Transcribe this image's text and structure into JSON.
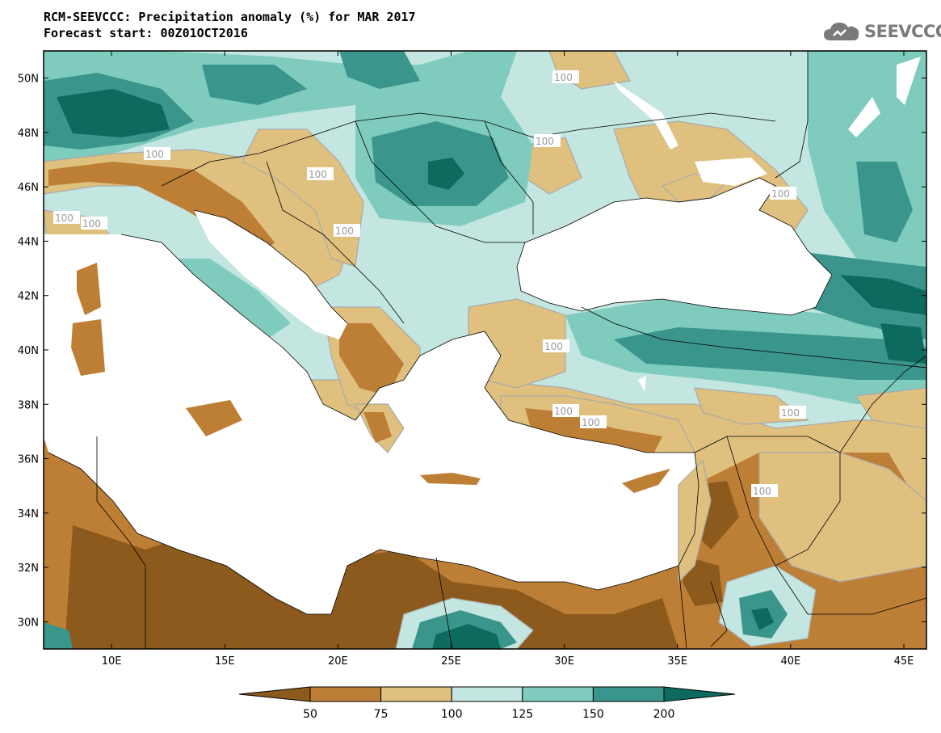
{
  "header": {
    "title": "RCM-SEEVCCC: Precipitation anomaly (%) for MAR 2017",
    "subtitle": "Forecast start: 00Z01OCT2016",
    "logo_text": "SEEVCCC"
  },
  "colors": {
    "below50": "#8c5a1c",
    "r50_75": "#bd7f35",
    "r75_100": "#dfc07f",
    "r100_125": "#c3e6e0",
    "r125_150": "#7fcbbd",
    "r150_200": "#3a958c",
    "above200": "#0d6a5e",
    "sea": "#ffffff",
    "contour100": "#a9a9a9"
  },
  "chart_data": {
    "type": "heatmap",
    "title": "RCM-SEEVCCC: Precipitation anomaly (%) for MAR 2017",
    "subtitle": "Forecast start: 00Z01OCT2016",
    "x_ticks": [
      "10E",
      "15E",
      "20E",
      "25E",
      "30E",
      "35E",
      "40E",
      "45E"
    ],
    "y_ticks": [
      "30N",
      "32N",
      "34N",
      "36N",
      "38N",
      "40N",
      "42N",
      "44N",
      "46N",
      "48N",
      "50N"
    ],
    "lon_range": [
      7,
      46
    ],
    "lat_range": [
      29,
      51
    ],
    "contour_labels": [
      "100",
      "100",
      "100",
      "100",
      "100",
      "100",
      "100",
      "100",
      "100",
      "100",
      "100",
      "100",
      "100"
    ],
    "colorbar": {
      "levels": [
        "50",
        "75",
        "100",
        "125",
        "150",
        "200"
      ],
      "extend": "both"
    }
  }
}
